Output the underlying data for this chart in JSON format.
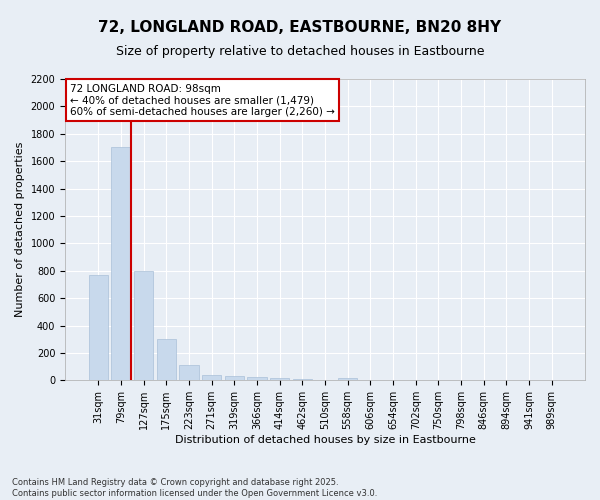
{
  "title_line1": "72, LONGLAND ROAD, EASTBOURNE, BN20 8HY",
  "title_line2": "Size of property relative to detached houses in Eastbourne",
  "xlabel": "Distribution of detached houses by size in Eastbourne",
  "ylabel": "Number of detached properties",
  "categories": [
    "31sqm",
    "79sqm",
    "127sqm",
    "175sqm",
    "223sqm",
    "271sqm",
    "319sqm",
    "366sqm",
    "414sqm",
    "462sqm",
    "510sqm",
    "558sqm",
    "606sqm",
    "654sqm",
    "702sqm",
    "750sqm",
    "798sqm",
    "846sqm",
    "894sqm",
    "941sqm",
    "989sqm"
  ],
  "values": [
    770,
    1700,
    800,
    300,
    115,
    42,
    35,
    28,
    18,
    12,
    0,
    18,
    0,
    0,
    0,
    0,
    0,
    0,
    0,
    0,
    0
  ],
  "bar_color": "#c8d9ec",
  "bar_edge_color": "#aac0d8",
  "vline_color": "#cc0000",
  "annotation_text": "72 LONGLAND ROAD: 98sqm\n← 40% of detached houses are smaller (1,479)\n60% of semi-detached houses are larger (2,260) →",
  "annotation_box_color": "#ffffff",
  "annotation_box_edge_color": "#cc0000",
  "ylim": [
    0,
    2200
  ],
  "yticks": [
    0,
    200,
    400,
    600,
    800,
    1000,
    1200,
    1400,
    1600,
    1800,
    2000,
    2200
  ],
  "background_color": "#e8eef5",
  "plot_bg_color": "#e8eef5",
  "grid_color": "#ffffff",
  "footnote": "Contains HM Land Registry data © Crown copyright and database right 2025.\nContains public sector information licensed under the Open Government Licence v3.0.",
  "title_fontsize": 11,
  "subtitle_fontsize": 9,
  "axis_label_fontsize": 8,
  "tick_fontsize": 7,
  "annotation_fontsize": 7.5,
  "footnote_fontsize": 6
}
